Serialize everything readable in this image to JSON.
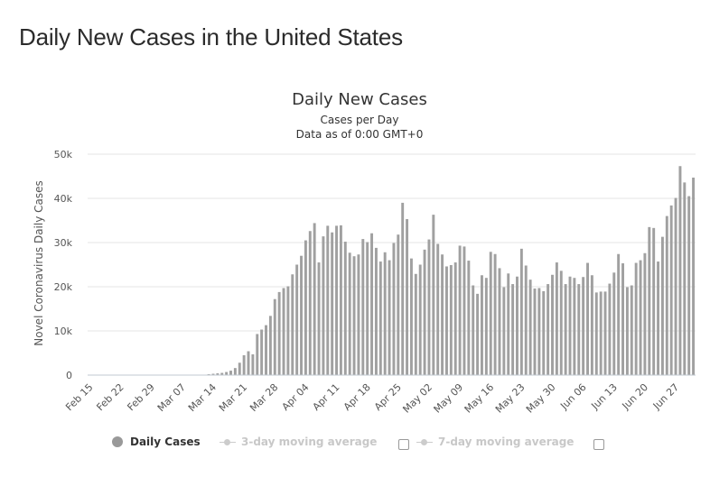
{
  "page_title": "Daily New Cases in the United States",
  "legend": {
    "daily_cases": "Daily Cases",
    "ma3": "3-day moving average",
    "ma7": "7-day moving average"
  },
  "colors": {
    "bar": "#a0a0a0",
    "legend_inactive": "#cccccc"
  },
  "chart_data": {
    "type": "bar",
    "title": "Daily New Cases",
    "subtitle": [
      "Cases per Day",
      "Data as of 0:00 GMT+0"
    ],
    "ylabel": "Novel Coronavirus Daily Cases",
    "xlabel": "",
    "ylim": [
      0,
      50000
    ],
    "yticks": [
      0,
      10000,
      20000,
      30000,
      40000,
      50000
    ],
    "ytick_labels": [
      "0",
      "10k",
      "20k",
      "30k",
      "40k",
      "50k"
    ],
    "xtick_labels": [
      "Feb 15",
      "Feb 22",
      "Feb 29",
      "Mar 07",
      "Mar 14",
      "Mar 21",
      "Mar 28",
      "Apr 04",
      "Apr 11",
      "Apr 18",
      "Apr 25",
      "May 02",
      "May 09",
      "May 16",
      "May 23",
      "May 30",
      "Jun 06",
      "Jun 13",
      "Jun 20",
      "Jun 27"
    ],
    "grid": true,
    "series": [
      {
        "name": "Daily Cases",
        "start_date": "Feb 15",
        "values": [
          0,
          0,
          0,
          0,
          0,
          0,
          0,
          0,
          0,
          0,
          0,
          0,
          0,
          0,
          0,
          0,
          0,
          0,
          0,
          0,
          0,
          0,
          0,
          0,
          0,
          0,
          100,
          200,
          300,
          400,
          500,
          700,
          1000,
          1600,
          2800,
          4500,
          5400,
          4700,
          9300,
          10300,
          11300,
          13400,
          17200,
          18800,
          19700,
          20100,
          22800,
          25000,
          27000,
          30500,
          32600,
          34400,
          25500,
          31400,
          33800,
          32300,
          33800,
          33900,
          30200,
          27700,
          26900,
          27300,
          30800,
          30100,
          32100,
          28800,
          25700,
          27800,
          26000,
          29900,
          31800,
          39000,
          35300,
          26400,
          22900,
          25000,
          28400,
          30700,
          36300,
          29700,
          27300,
          24600,
          24900,
          25500,
          29300,
          29100,
          25900,
          20300,
          18400,
          22600,
          22000,
          27900,
          27400,
          24200,
          19900,
          23000,
          20600,
          22300,
          28600,
          24800,
          21600,
          19600,
          19700,
          19000,
          20600,
          22700,
          25500,
          23600,
          20600,
          22300,
          22000,
          20600,
          22200,
          25400,
          22600,
          18700,
          18900,
          18900,
          20700,
          23200,
          27400,
          25300,
          19900,
          20300,
          25400,
          26000,
          27600,
          33500,
          33300,
          25700,
          31300,
          36000,
          38400,
          40100,
          47300,
          43600,
          40500,
          44700
        ]
      }
    ]
  }
}
